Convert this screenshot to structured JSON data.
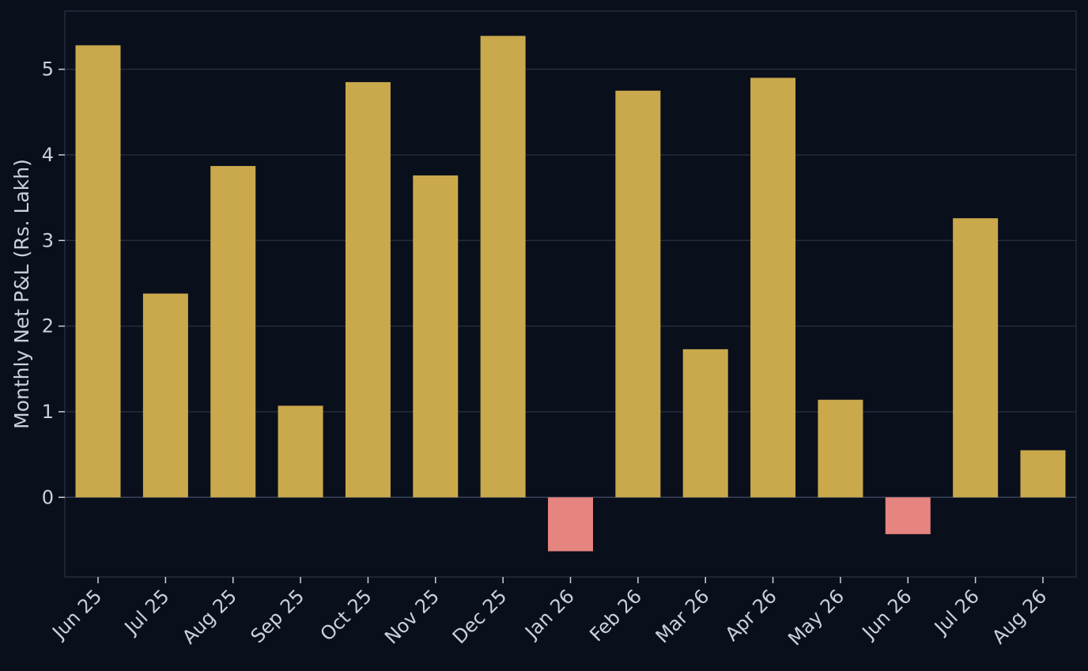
{
  "chart_data": {
    "type": "bar",
    "ylabel": "Monthly Net P&L (Rs. Lakh)",
    "categories": [
      "Jun 25",
      "Jul 25",
      "Aug 25",
      "Sep 25",
      "Oct 25",
      "Nov 25",
      "Dec 25",
      "Jan 26",
      "Feb 26",
      "Mar 26",
      "Apr 26",
      "May 26",
      "Jun 26",
      "Jul 26",
      "Aug 26"
    ],
    "values": [
      5.28,
      2.38,
      3.87,
      1.07,
      4.85,
      3.76,
      5.39,
      -0.63,
      4.75,
      1.73,
      4.9,
      1.14,
      -0.43,
      3.26,
      0.55
    ],
    "ylim": [
      -0.93,
      5.68
    ],
    "yticks": [
      0,
      1,
      2,
      3,
      4,
      5
    ],
    "grid": true,
    "colors": {
      "background": "#0a0f1c",
      "positive": "#c9a94c",
      "negative": "#e6847f",
      "text": "#c9d1dc",
      "grid": "#252c3b"
    }
  }
}
